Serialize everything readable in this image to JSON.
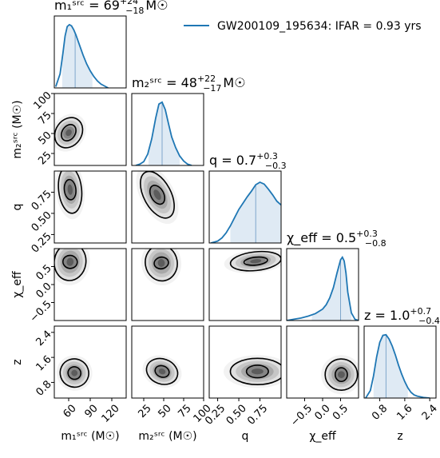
{
  "chart_data": {
    "type": "corner",
    "legend": {
      "label": "GW200109_195634: IFAR = 0.93 yrs",
      "placement": "top-right",
      "color": "#1f77b4"
    },
    "colors": {
      "series": "#1f77b4",
      "fill": "#c9dced",
      "contour": "#000000",
      "density": "#000000"
    },
    "parameters": [
      {
        "key": "m1",
        "axis_label": "m₁ˢʳᶜ (M☉)",
        "title": {
          "lhs": "m₁ˢʳᶜ = 69",
          "sup": "+24",
          "sub": "−18",
          "unit": "M☉"
        },
        "median": 69,
        "ci90": [
          51,
          93
        ],
        "range": [
          40,
          140
        ],
        "ticks": [
          60,
          90,
          120
        ],
        "tick_labels": [
          "60",
          "90",
          "120"
        ],
        "hist_x": [
          42,
          48,
          52,
          55,
          58,
          61,
          64,
          67,
          70,
          75,
          80,
          85,
          90,
          95,
          100,
          105,
          110,
          115
        ],
        "hist_y": [
          0.02,
          0.22,
          0.55,
          0.82,
          0.97,
          1.0,
          0.98,
          0.92,
          0.84,
          0.68,
          0.52,
          0.38,
          0.27,
          0.18,
          0.11,
          0.06,
          0.03,
          0.0
        ]
      },
      {
        "key": "m2",
        "axis_label": "m₂ˢʳᶜ (M☉)",
        "title": {
          "lhs": "m₂ˢʳᶜ = 48",
          "sup": "+22",
          "sub": "−17",
          "unit": "M☉"
        },
        "median": 48,
        "ci90": [
          31,
          70
        ],
        "range": [
          10,
          100
        ],
        "ticks": [
          25,
          50,
          75,
          100
        ],
        "tick_labels": [
          "25",
          "50",
          "75",
          "100"
        ],
        "hist_x": [
          15,
          20,
          25,
          30,
          35,
          40,
          44,
          48,
          52,
          56,
          60,
          65,
          70,
          75,
          80,
          85
        ],
        "hist_y": [
          0.0,
          0.02,
          0.06,
          0.18,
          0.42,
          0.75,
          0.97,
          1.0,
          0.88,
          0.66,
          0.45,
          0.28,
          0.15,
          0.07,
          0.02,
          0.0
        ]
      },
      {
        "key": "q",
        "axis_label": "q",
        "title": {
          "lhs": "q = 0.7",
          "sup": "+0.3",
          "sub": "−0.3",
          "unit": ""
        },
        "median": 0.7,
        "ci90": [
          0.4,
          1.0
        ],
        "range": [
          0.15,
          1.0
        ],
        "ticks": [
          0.25,
          0.5,
          0.75
        ],
        "tick_labels": [
          "0.25",
          "0.50",
          "0.75"
        ],
        "hist_x": [
          0.17,
          0.25,
          0.3,
          0.35,
          0.4,
          0.45,
          0.5,
          0.55,
          0.6,
          0.65,
          0.7,
          0.75,
          0.8,
          0.85,
          0.9,
          0.95,
          1.0
        ],
        "hist_y": [
          0.0,
          0.03,
          0.08,
          0.16,
          0.27,
          0.4,
          0.53,
          0.63,
          0.73,
          0.82,
          0.92,
          0.96,
          0.93,
          0.85,
          0.76,
          0.66,
          0.6
        ]
      },
      {
        "key": "chi_eff",
        "axis_label": "χ_eff",
        "title": {
          "lhs": "χ_eff = 0.5",
          "sup": "+0.3",
          "sub": "−0.8",
          "unit": ""
        },
        "median": 0.5,
        "ci90": [
          -0.3,
          0.8
        ],
        "range": [
          -1.0,
          1.0
        ],
        "ticks": [
          -0.5,
          0.0,
          0.5
        ],
        "tick_labels": [
          "−0.5",
          "0.0",
          "0.5"
        ],
        "hist_x": [
          -1.0,
          -0.8,
          -0.6,
          -0.4,
          -0.2,
          0.0,
          0.1,
          0.2,
          0.3,
          0.4,
          0.5,
          0.55,
          0.6,
          0.65,
          0.7,
          0.8,
          0.9,
          1.0
        ],
        "hist_y": [
          0.0,
          0.02,
          0.04,
          0.07,
          0.11,
          0.18,
          0.25,
          0.36,
          0.52,
          0.75,
          0.96,
          1.0,
          0.94,
          0.75,
          0.45,
          0.12,
          0.02,
          0.0
        ]
      },
      {
        "key": "z",
        "axis_label": "z",
        "title": {
          "lhs": "z = 1.0",
          "sup": "+0.7",
          "sub": "−0.4",
          "unit": ""
        },
        "median": 1.0,
        "ci90": [
          0.6,
          1.7
        ],
        "range": [
          0.3,
          2.6
        ],
        "ticks": [
          0.8,
          1.6,
          2.4
        ],
        "tick_labels": [
          "0.8",
          "1.6",
          "2.4"
        ],
        "hist_x": [
          0.35,
          0.5,
          0.6,
          0.7,
          0.8,
          0.9,
          1.0,
          1.1,
          1.2,
          1.3,
          1.4,
          1.5,
          1.6,
          1.7,
          1.8,
          1.9,
          2.0,
          2.2,
          2.4
        ],
        "hist_y": [
          0.0,
          0.12,
          0.35,
          0.65,
          0.88,
          0.99,
          1.0,
          0.93,
          0.82,
          0.68,
          0.52,
          0.38,
          0.26,
          0.16,
          0.09,
          0.05,
          0.03,
          0.01,
          0.0
        ]
      }
    ],
    "joint": {
      "2,0": {
        "mean": [
          60,
          51
        ],
        "inner_radius": [
          9,
          11
        ],
        "outer_radius": [
          18,
          20
        ],
        "corr": -0.85
      },
      "3,0": {
        "mean": [
          62,
          0.78
        ],
        "inner_radius": [
          8,
          0.12
        ],
        "outer_radius": [
          16,
          0.28
        ],
        "corr": 0.15
      },
      "3,1": {
        "mean": [
          42,
          0.72
        ],
        "inner_radius": [
          8,
          0.12
        ],
        "outer_radius": [
          17,
          0.3
        ],
        "corr": 0.7
      },
      "4,0": {
        "mean": [
          62,
          0.63
        ],
        "inner_radius": [
          10,
          0.18
        ],
        "outer_radius": [
          22,
          0.52
        ],
        "corr": -0.2
      },
      "4,1": {
        "mean": [
          47,
          0.6
        ],
        "inner_radius": [
          9,
          0.16
        ],
        "outer_radius": [
          20,
          0.5
        ],
        "corr": 0.25
      },
      "4,2": {
        "mean": [
          0.7,
          0.65
        ],
        "inner_radius": [
          0.14,
          0.11
        ],
        "outer_radius": [
          0.3,
          0.26
        ],
        "corr": 0.15
      },
      "5,0": {
        "mean": [
          68,
          1.1
        ],
        "inner_radius": [
          9,
          0.2
        ],
        "outer_radius": [
          20,
          0.45
        ],
        "corr": -0.65
      },
      "5,1": {
        "mean": [
          48,
          1.15
        ],
        "inner_radius": [
          9,
          0.18
        ],
        "outer_radius": [
          20,
          0.4
        ],
        "corr": -0.5
      },
      "5,2": {
        "mean": [
          0.72,
          1.15
        ],
        "inner_radius": [
          0.13,
          0.2
        ],
        "outer_radius": [
          0.32,
          0.42
        ],
        "corr": 0.0
      },
      "5,3": {
        "mean": [
          0.52,
          1.05
        ],
        "inner_radius": [
          0.17,
          0.22
        ],
        "outer_radius": [
          0.45,
          0.5
        ],
        "corr": 0.05
      }
    }
  }
}
